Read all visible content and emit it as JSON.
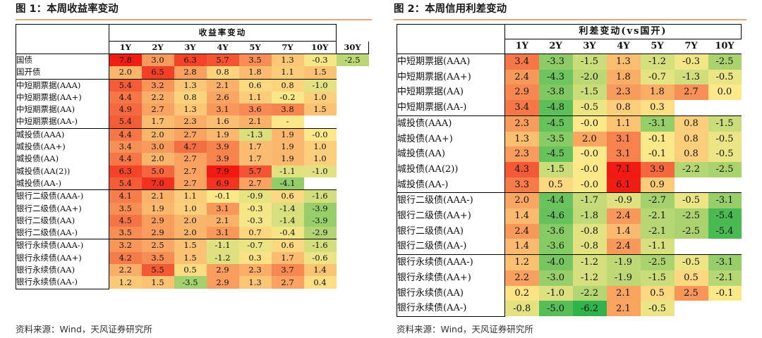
{
  "left": {
    "title": "图 1：本周收益率变动",
    "header_group": "收益率变动",
    "columns": [
      "1Y",
      "2Y",
      "3Y",
      "4Y",
      "5Y",
      "7Y",
      "10Y",
      "30Y"
    ],
    "groups": [
      [
        {
          "name": "国债",
          "values": [
            "7.8",
            "3.0",
            "6.3",
            "5.7",
            "3.5",
            "1.3",
            "-0.3",
            "-2.5"
          ]
        },
        {
          "name": "国开债",
          "values": [
            "2.0",
            "6.5",
            "2.8",
            "0.8",
            "1.8",
            "1.1",
            "1.5",
            ""
          ]
        }
      ],
      [
        {
          "name": "中短期票据(AAA)",
          "values": [
            "5.4",
            "3.2",
            "1.3",
            "2.1",
            "0.6",
            "0.8",
            "-1.0"
          ]
        },
        {
          "name": "中短期票据(AA+)",
          "values": [
            "4.4",
            "2.2",
            "0.8",
            "2.6",
            "1.1",
            "-0.2",
            "1.0"
          ]
        },
        {
          "name": "中短期票据(AA)",
          "values": [
            "4.9",
            "2.7",
            "1.3",
            "3.1",
            "3.6",
            "3.8",
            "1.5"
          ]
        },
        {
          "name": "中短期票据(AA-)",
          "values": [
            "5.4",
            "1.7",
            "2.3",
            "1.6",
            "2.1",
            "-",
            ""
          ]
        }
      ],
      [
        {
          "name": "城投债(AAA)",
          "values": [
            "4.4",
            "2.0",
            "2.7",
            "1.9",
            "-1.3",
            "1.9",
            "-0.0"
          ]
        },
        {
          "name": "城投债(AA+)",
          "values": [
            "3.4",
            "3.0",
            "4.7",
            "3.9",
            "1.7",
            "1.9",
            "1.0"
          ]
        },
        {
          "name": "城投债(AA)",
          "values": [
            "4.4",
            "2.0",
            "2.7",
            "3.9",
            "1.7",
            "1.9",
            "1.0"
          ]
        },
        {
          "name": "城投债(AA(2))",
          "values": [
            "6.3",
            "5.0",
            "2.7",
            "7.9",
            "5.7",
            "-1.1",
            "-1.0"
          ]
        },
        {
          "name": "城投债(AA-)",
          "values": [
            "5.4",
            "7.0",
            "2.7",
            "6.9",
            "2.7",
            "-4.1",
            ""
          ]
        }
      ],
      [
        {
          "name": "银行二级债(AAA-)",
          "values": [
            "4.1",
            "2.1",
            "1.1",
            "-0.1",
            "-0.9",
            "0.6",
            "-1.6"
          ]
        },
        {
          "name": "银行二级债(AA+)",
          "values": [
            "3.5",
            "1.9",
            "1.0",
            "3.1",
            "-0.3",
            "-1.4",
            "-3.9"
          ]
        },
        {
          "name": "银行二级债(AA)",
          "values": [
            "4.5",
            "2.9",
            "2.0",
            "2.1",
            "-0.3",
            "-1.4",
            "-3.9"
          ]
        },
        {
          "name": "银行二级债(AA-)",
          "values": [
            "3.5",
            "2.9",
            "2.0",
            "3.1",
            "0.7",
            "-0.4",
            "-2.9"
          ]
        }
      ],
      [
        {
          "name": "银行永续债(AAA-)",
          "values": [
            "3.2",
            "2.5",
            "1.5",
            "-1.1",
            "-0.7",
            "0.6",
            "-1.6"
          ]
        },
        {
          "name": "银行永续债(AA+)",
          "values": [
            "4.2",
            "3.5",
            "1.5",
            "-1.2",
            "0.3",
            "1.7",
            "-0.6"
          ]
        },
        {
          "name": "银行永续债(AA)",
          "values": [
            "2.2",
            "5.5",
            "0.5",
            "2.9",
            "2.3",
            "3.7",
            "1.4"
          ]
        },
        {
          "name": "银行永续债(AA-)",
          "values": [
            "1.2",
            "1.5",
            "-3.5",
            "2.9",
            "1.3",
            "2.7",
            "0.4"
          ]
        }
      ]
    ],
    "source": "资料来源：Wind，天风证券研究所"
  },
  "right": {
    "title": "图 2：本周信用利差变动",
    "header_group": "利差变动(vs国开)",
    "columns": [
      "1Y",
      "2Y",
      "3Y",
      "4Y",
      "5Y",
      "7Y",
      "10Y"
    ],
    "groups": [
      [
        {
          "name": "中短期票据(AAA)",
          "values": [
            "3.4",
            "-3.3",
            "-1.5",
            "1.3",
            "-1.2",
            "-0.3",
            "-2.5"
          ]
        },
        {
          "name": "中短期票据(AA+)",
          "values": [
            "2.4",
            "-4.3",
            "-2.0",
            "1.8",
            "-0.7",
            "-1.3",
            "-0.5"
          ]
        },
        {
          "name": "中短期票据(AA)",
          "values": [
            "2.9",
            "-3.8",
            "-1.5",
            "2.3",
            "1.8",
            "2.7",
            "0.0"
          ]
        },
        {
          "name": "中短期票据(AA-)",
          "values": [
            "3.4",
            "-4.8",
            "-0.5",
            "0.8",
            "0.3",
            "",
            ""
          ]
        }
      ],
      [
        {
          "name": "城投债(AAA)",
          "values": [
            "2.3",
            "-4.5",
            "-0.0",
            "1.1",
            "-3.1",
            "0.8",
            "-1.5"
          ]
        },
        {
          "name": "城投债(AA+)",
          "values": [
            "1.3",
            "-3.5",
            "2.0",
            "3.1",
            "-0.1",
            "0.8",
            "-0.5"
          ]
        },
        {
          "name": "城投债(AA)",
          "values": [
            "2.3",
            "-4.5",
            "-0.0",
            "3.1",
            "-0.1",
            "0.8",
            "-0.5"
          ]
        },
        {
          "name": "城投债(AA(2))",
          "values": [
            "4.3",
            "-1.5",
            "-0.0",
            "7.1",
            "3.9",
            "-2.2",
            "-2.5"
          ]
        },
        {
          "name": "城投债(AA-)",
          "values": [
            "3.3",
            "0.5",
            "-0.0",
            "6.1",
            "0.9",
            "",
            ""
          ]
        }
      ],
      [
        {
          "name": "银行二级债(AAA-)",
          "values": [
            "2.0",
            "-4.4",
            "-1.7",
            "-0.9",
            "-2.7",
            "-0.5",
            "-3.1"
          ]
        },
        {
          "name": "银行二级债(AA+)",
          "values": [
            "1.4",
            "-4.6",
            "-1.8",
            "2.4",
            "-2.1",
            "-2.5",
            "-5.4"
          ]
        },
        {
          "name": "银行二级债(AA)",
          "values": [
            "2.4",
            "-3.6",
            "-0.8",
            "1.4",
            "-2.1",
            "-2.5",
            "-5.4"
          ]
        },
        {
          "name": "银行二级债(AA-)",
          "values": [
            "1.4",
            "-3.6",
            "-0.8",
            "2.4",
            "-1.1",
            "",
            ""
          ]
        }
      ],
      [
        {
          "name": "银行永续债(AAA-)",
          "values": [
            "1.2",
            "-4.0",
            "-1.2",
            "-1.9",
            "-2.5",
            "-0.5",
            "-3.1"
          ]
        },
        {
          "name": "银行永续债(AA+)",
          "values": [
            "2.2",
            "-3.0",
            "-1.2",
            "-1.9",
            "-1.5",
            "0.5",
            "-2.1"
          ]
        },
        {
          "name": "银行永续债(AA)",
          "values": [
            "0.2",
            "-1.0",
            "-2.2",
            "2.1",
            "0.5",
            "2.5",
            "-0.1"
          ]
        },
        {
          "name": "银行永续债(AA-)",
          "values": [
            "-0.8",
            "-5.0",
            "-6.2",
            "2.1",
            "-0.5",
            "",
            ""
          ]
        }
      ]
    ],
    "source": "资料来源：Wind，天风证券研究所"
  },
  "colors": {
    "neg_strong": "#2fb34a",
    "neutral": "#fde98a",
    "pos_strong": "#f01a12",
    "accent_rule": "#e0a882"
  }
}
